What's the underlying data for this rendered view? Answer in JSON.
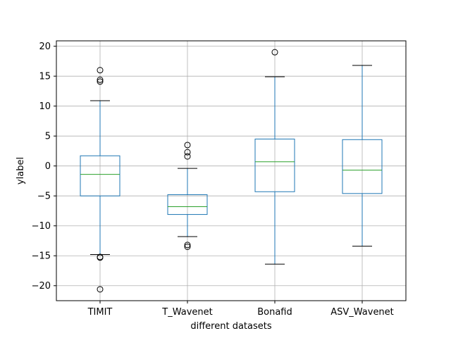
{
  "chart_data": {
    "type": "box",
    "title": "",
    "xlabel": "different datasets",
    "ylabel": "ylabel",
    "ylim": [
      -22.5,
      20.9
    ],
    "yticks": [
      -20,
      -15,
      -10,
      -5,
      0,
      5,
      10,
      15,
      20
    ],
    "grid": true,
    "categories": [
      "TIMIT",
      "T_Wavenet",
      "Bonafid",
      "ASV_Wavenet"
    ],
    "boxes": [
      {
        "category": "TIMIT",
        "whislo": -14.8,
        "q1": -5.0,
        "median": -1.4,
        "q3": 1.7,
        "whishi": 10.9,
        "fliers": [
          16.0,
          14.4,
          14.1,
          -15.2,
          -15.3,
          -20.6
        ]
      },
      {
        "category": "T_Wavenet",
        "whislo": -11.8,
        "q1": -8.1,
        "median": -6.8,
        "q3": -4.8,
        "whishi": -0.4,
        "fliers": [
          3.5,
          2.3,
          1.6,
          -13.2,
          -13.5
        ]
      },
      {
        "category": "Bonafid",
        "whislo": -16.4,
        "q1": -4.3,
        "median": 0.7,
        "q3": 4.5,
        "whishi": 14.9,
        "fliers": [
          19.0
        ]
      },
      {
        "category": "ASV_Wavenet",
        "whislo": -13.4,
        "q1": -4.6,
        "median": -0.7,
        "q3": 4.4,
        "whishi": 16.8,
        "fliers": []
      }
    ],
    "colors": {
      "box": "#1f77b4",
      "median": "#2ca02c",
      "whisker_cap": "#000000",
      "grid": "#b0b0b0",
      "flier": "#000000"
    }
  }
}
